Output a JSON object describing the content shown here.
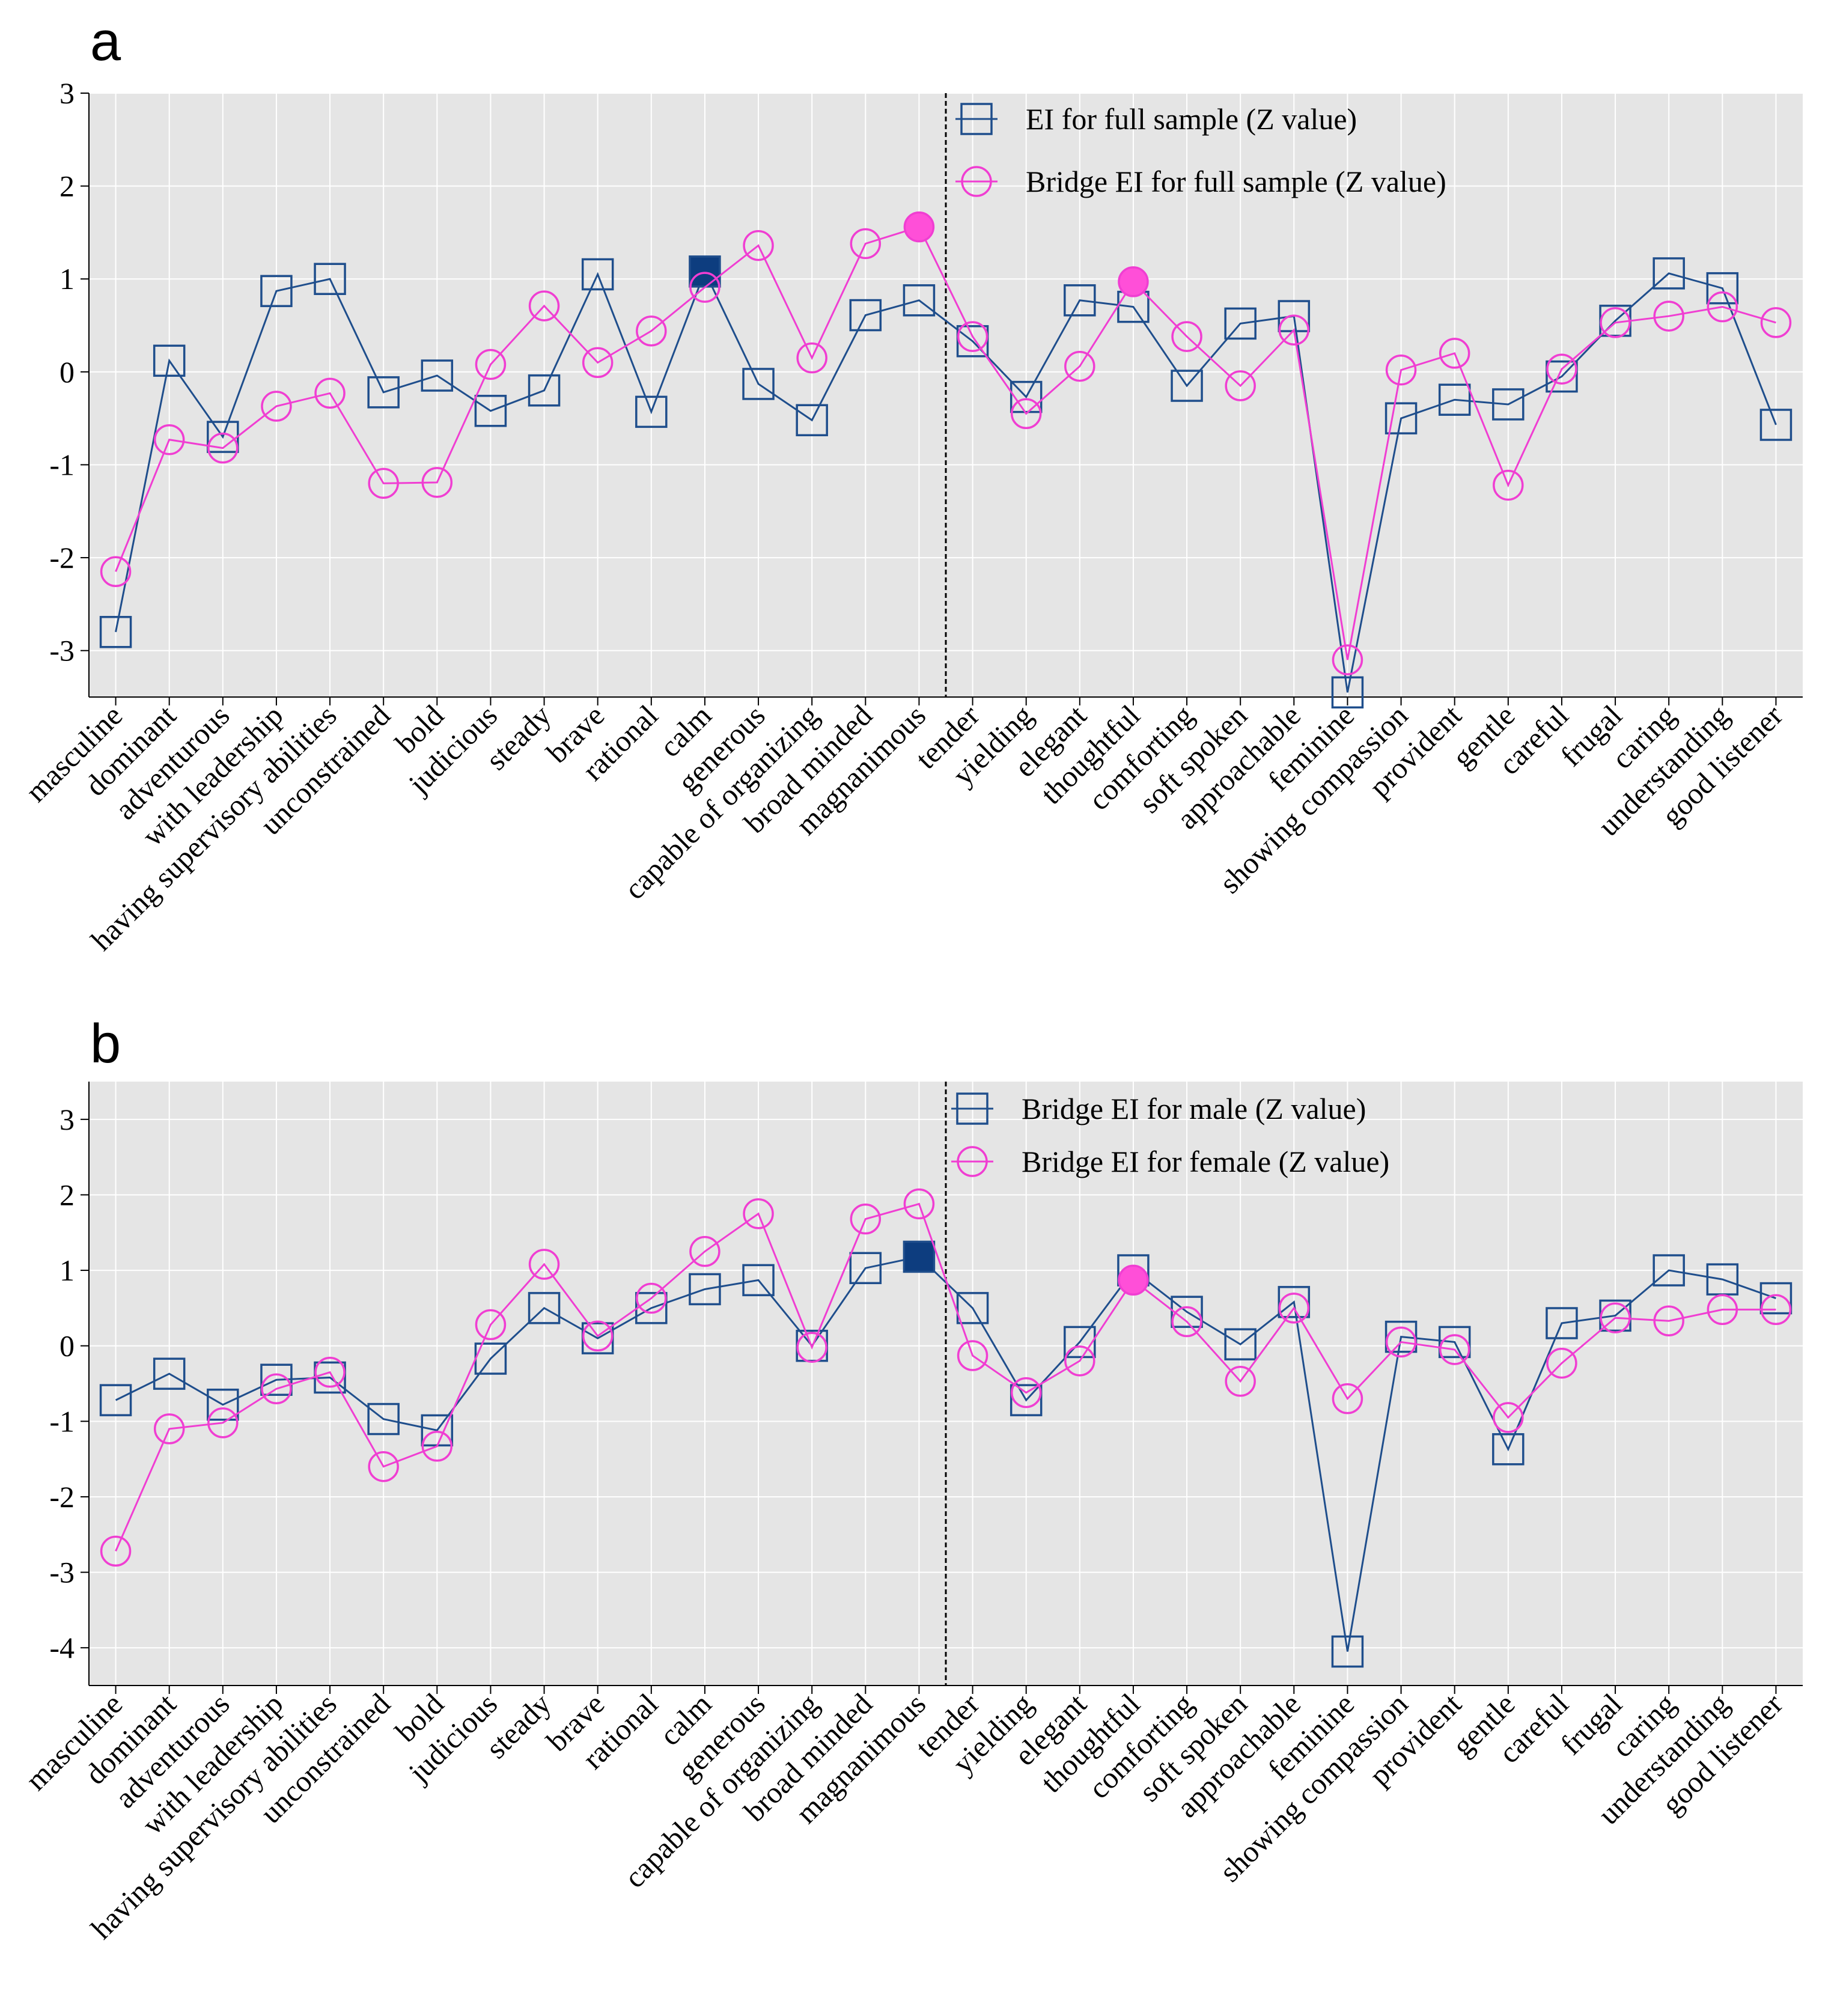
{
  "categories": [
    "masculine",
    "dominant",
    "adventurous",
    "with leadership",
    "having supervisory abilities",
    "unconstrained",
    "bold",
    "judicious",
    "steady",
    "brave",
    "rational",
    "calm",
    "generous",
    "capable of organizing",
    "broad minded",
    "magnanimous",
    "tender",
    "yielding",
    "elegant",
    "thoughtful",
    "comforting",
    "soft spoken",
    "approachable",
    "feminine",
    "showing compassion",
    "provident",
    "gentle",
    "careful",
    "frugal",
    "caring",
    "understanding",
    "good listener"
  ],
  "colors": {
    "navy": "#1f4e8c",
    "navy_fill": "#0d3d7f",
    "magenta": "#f03ed2",
    "magenta_fill": "#ff4fd8",
    "background": "#e5e5e5"
  },
  "chart_data": [
    {
      "panel": "a",
      "type": "line",
      "ylim": [
        -3.5,
        3.0
      ],
      "yticks": [
        -3,
        -2,
        -1,
        0,
        1,
        2,
        3
      ],
      "ytick_labels": [
        "-3",
        "-2",
        "-1",
        "0",
        "1",
        "2",
        "3"
      ],
      "divider_after_index": 15,
      "series": [
        {
          "name": "EI for full sample (Z value)",
          "marker": "square",
          "color": "#1f4e8c",
          "values": [
            -2.8,
            0.12,
            -0.7,
            0.87,
            1.0,
            -0.22,
            -0.04,
            -0.42,
            -0.2,
            1.05,
            -0.43,
            1.08,
            -0.13,
            -0.52,
            0.61,
            0.77,
            0.33,
            -0.27,
            0.77,
            0.7,
            -0.15,
            0.52,
            0.6,
            -3.45,
            -0.5,
            -0.3,
            -0.35,
            -0.05,
            0.55,
            1.06,
            0.9,
            -0.57
          ],
          "highlight_index": 11
        },
        {
          "name": "Bridge EI for full sample (Z value)",
          "marker": "circle",
          "color": "#f03ed2",
          "values": [
            -2.15,
            -0.73,
            -0.82,
            -0.37,
            -0.23,
            -1.2,
            -1.19,
            0.08,
            0.71,
            0.1,
            0.44,
            0.91,
            1.36,
            0.15,
            1.38,
            1.56,
            0.38,
            -0.45,
            0.06,
            0.97,
            0.38,
            -0.15,
            0.45,
            -3.1,
            0.02,
            0.2,
            -1.22,
            0.03,
            0.53,
            0.6,
            0.7,
            0.53
          ],
          "highlight_index": [
            15,
            19
          ]
        }
      ]
    },
    {
      "panel": "b",
      "type": "line",
      "ylim": [
        -4.5,
        3.5
      ],
      "yticks": [
        -4,
        -3,
        -2,
        -1,
        0,
        1,
        2,
        3
      ],
      "ytick_labels": [
        "-4",
        "-3",
        "-2",
        "-1",
        "0",
        "1",
        "2",
        "3"
      ],
      "divider_after_index": 15,
      "series": [
        {
          "name": "Bridge EI for male (Z value)",
          "marker": "square",
          "color": "#1f4e8c",
          "values": [
            -0.72,
            -0.37,
            -0.78,
            -0.45,
            -0.42,
            -0.97,
            -1.12,
            -0.17,
            0.5,
            0.1,
            0.5,
            0.75,
            0.87,
            0.0,
            1.03,
            1.18,
            0.5,
            -0.72,
            0.05,
            1.0,
            0.45,
            0.02,
            0.58,
            -4.05,
            0.12,
            0.05,
            -1.37,
            0.3,
            0.4,
            1.0,
            0.88,
            0.63
          ],
          "highlight_index": 15
        },
        {
          "name": "Bridge EI for female (Z value)",
          "marker": "circle",
          "color": "#f03ed2",
          "values": [
            -2.72,
            -1.1,
            -1.02,
            -0.57,
            -0.35,
            -1.6,
            -1.33,
            0.28,
            1.08,
            0.13,
            0.63,
            1.25,
            1.75,
            -0.02,
            1.68,
            1.88,
            -0.13,
            -0.62,
            -0.2,
            0.87,
            0.32,
            -0.47,
            0.5,
            -0.7,
            0.05,
            -0.05,
            -0.95,
            -0.23,
            0.37,
            0.33,
            0.48,
            0.48
          ],
          "highlight_index": 19
        }
      ]
    }
  ]
}
